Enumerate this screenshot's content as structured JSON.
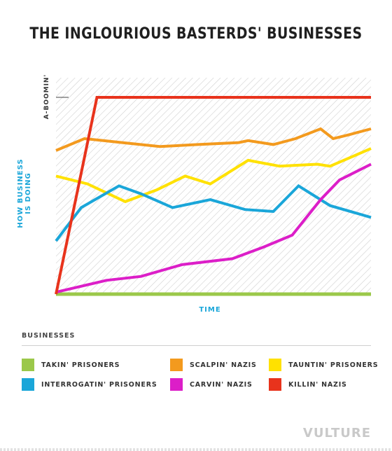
{
  "title": "THE INGLOURIOUS BASTERDS' BUSINESSES",
  "legend_header": "BUSINESSES",
  "brand": "VULTURE",
  "chart_data": {
    "type": "line",
    "title": "THE INGLOURIOUS BASTERDS' BUSINESSES",
    "xlabel": "TIME",
    "ylabel": "HOW BUSINESS IS DOING",
    "ytick_label": "A-BOOMIN'",
    "ytick_value": 100,
    "xlim": [
      0,
      100
    ],
    "ylim": [
      0,
      100
    ],
    "grid": false,
    "legend_placement": "bottom",
    "series": [
      {
        "name": "TAKIN' PRISONERS",
        "color": "#9bc84a",
        "x": [
          0,
          100
        ],
        "y": [
          0,
          0
        ]
      },
      {
        "name": "SCALPIN' NAZIS",
        "color": "#f39a1e",
        "x": [
          0,
          9,
          15,
          21,
          33,
          45,
          58,
          61,
          69,
          76,
          84,
          88,
          93,
          100
        ],
        "y": [
          73,
          79,
          78,
          77,
          75,
          76,
          77,
          78,
          76,
          79,
          84,
          79,
          81,
          84
        ]
      },
      {
        "name": "TAUNTIN' PRISONERS",
        "color": "#ffe100",
        "x": [
          0,
          10,
          22,
          32,
          41,
          49,
          61,
          71,
          83,
          87,
          100
        ],
        "y": [
          60,
          56,
          47,
          53,
          60,
          56,
          68,
          65,
          66,
          65,
          74
        ]
      },
      {
        "name": "INTERROGATIN' PRISONERS",
        "color": "#1aa6d9",
        "x": [
          0,
          8,
          20,
          27,
          37,
          49,
          60,
          69,
          77,
          87,
          100
        ],
        "y": [
          27,
          44,
          55,
          51,
          44,
          48,
          43,
          42,
          55,
          45,
          39
        ]
      },
      {
        "name": "CARVIN' NAZIS",
        "color": "#dc1ec8",
        "x": [
          0,
          16,
          27,
          40,
          56,
          66,
          75,
          84,
          90,
          100
        ],
        "y": [
          1,
          7,
          9,
          15,
          18,
          24,
          30,
          48,
          58,
          66
        ]
      },
      {
        "name": "KILLIN' NAZIS",
        "color": "#e8331c",
        "x": [
          0,
          13,
          100
        ],
        "y": [
          0,
          100,
          100
        ]
      }
    ]
  }
}
